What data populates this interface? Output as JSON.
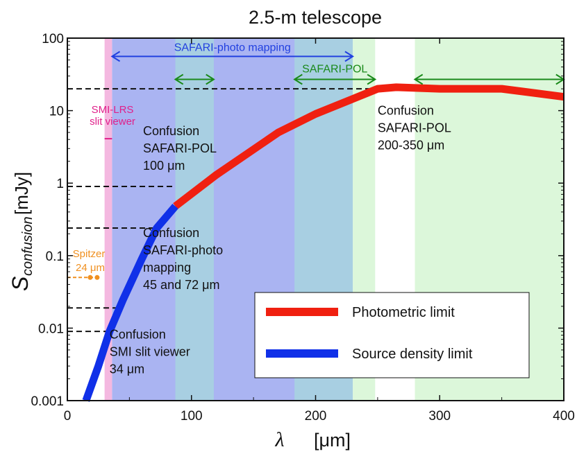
{
  "chart_data": {
    "type": "line",
    "title": "2.5-m telescope",
    "xlabel_symbol": "λ",
    "xlabel_unit": "[μm]",
    "ylabel_main": "S",
    "ylabel_sub": "confusion",
    "ylabel_unit": "[mJy]",
    "xlim": [
      0,
      400
    ],
    "ylim": [
      0.001,
      100
    ],
    "yscale": "log",
    "x_ticks": [
      {
        "value": 0,
        "label": "0"
      },
      {
        "value": 100,
        "label": "100"
      },
      {
        "value": 200,
        "label": "200"
      },
      {
        "value": 300,
        "label": "300"
      },
      {
        "value": 400,
        "label": "400"
      }
    ],
    "y_ticks": [
      {
        "value": 0.001,
        "label": "0.001"
      },
      {
        "value": 0.01,
        "label": "0.01"
      },
      {
        "value": 0.1,
        "label": "0.1"
      },
      {
        "value": 1,
        "label": "1"
      },
      {
        "value": 10,
        "label": "10"
      },
      {
        "value": 100,
        "label": "100"
      }
    ],
    "bands": [
      {
        "name": "safari-photo-band",
        "x0": 36,
        "x1": 230,
        "color": "#aab4f2"
      },
      {
        "name": "safari-pol-band-1",
        "x0": 87,
        "x1": 118,
        "color": "#a8cfe2"
      },
      {
        "name": "safari-pol-band-2",
        "x0": 183,
        "x1": 230,
        "color": "#a8cfe2"
      },
      {
        "name": "safari-pol-band-3",
        "x0": 230,
        "x1": 248,
        "color": "#dcf7da"
      },
      {
        "name": "safari-pol-band-4",
        "x0": 280,
        "x1": 400,
        "color": "#dcf7da"
      },
      {
        "name": "smi-lrs-band",
        "x0": 30,
        "x1": 36,
        "color": "#f4b8e0"
      }
    ],
    "series": [
      {
        "name": "Photometric limit",
        "color": "#f02010",
        "x": [
          87,
          120,
          170,
          200,
          250,
          265,
          300,
          350,
          400
        ],
        "y": [
          0.48,
          1.3,
          5,
          9,
          20,
          21,
          20,
          20,
          15.5
        ]
      },
      {
        "name": "Source density limit",
        "color": "#1030e8",
        "x": [
          15,
          25,
          34,
          45,
          60,
          72,
          87
        ],
        "y": [
          0.001,
          0.003,
          0.009,
          0.025,
          0.09,
          0.24,
          0.48
        ]
      }
    ],
    "dashed_levels": [
      {
        "y": 20,
        "x_end": 250
      },
      {
        "y": 0.9,
        "x_end": 87
      },
      {
        "y": 0.24,
        "x_end": 72
      },
      {
        "y": 0.019,
        "x_end": 45
      },
      {
        "y": 0.009,
        "x_end": 34
      }
    ],
    "spitzer": {
      "label_line1": "Spitzer",
      "label_line2": "24 μm",
      "x": 24,
      "y": 0.05,
      "x_start": 0
    },
    "smi_marker": {
      "label_line1": "SMI-LRS",
      "label_line2": "slit viewer",
      "x": 30,
      "x2": 36,
      "y": 4.1
    },
    "arrows": [
      {
        "name": "safari-photo-arrow",
        "label": "SAFARI-photo mapping",
        "x0": 36,
        "x1": 230,
        "y": 56,
        "color": "#2240e0"
      },
      {
        "name": "safari-pol-arrow-1",
        "label": "",
        "x0": 87,
        "x1": 118,
        "y": 27,
        "color": "#1a8a1a"
      },
      {
        "name": "safari-pol-arrow-2",
        "label": "SAFARI-POL",
        "x0": 183,
        "x1": 248,
        "y": 27,
        "color": "#1a8a1a"
      },
      {
        "name": "safari-pol-arrow-3",
        "label": "",
        "x0": 280,
        "x1": 400,
        "y": 27,
        "color": "#1a8a1a"
      }
    ],
    "annotations": [
      {
        "name": "annotation-confusion-pol-250",
        "lines": [
          "Confusion",
          "SAFARI-POL",
          "200-350 μm"
        ],
        "x": 250,
        "y": 8.8
      },
      {
        "name": "annotation-confusion-pol-100",
        "lines": [
          "Confusion",
          "SAFARI-POL",
          "100 μm"
        ],
        "x": 61,
        "y": 4.6
      },
      {
        "name": "annotation-confusion-photo",
        "lines": [
          "Confusion",
          "SAFARI-photo",
          "mapping",
          "45 and 72 μm"
        ],
        "x": 61,
        "y": 0.18
      },
      {
        "name": "annotation-confusion-smi",
        "lines": [
          "Confusion",
          "SMI slit viewer",
          "34 μm"
        ],
        "x": 34,
        "y": 0.0072
      }
    ],
    "legend": {
      "position": "bottom-right"
    }
  }
}
